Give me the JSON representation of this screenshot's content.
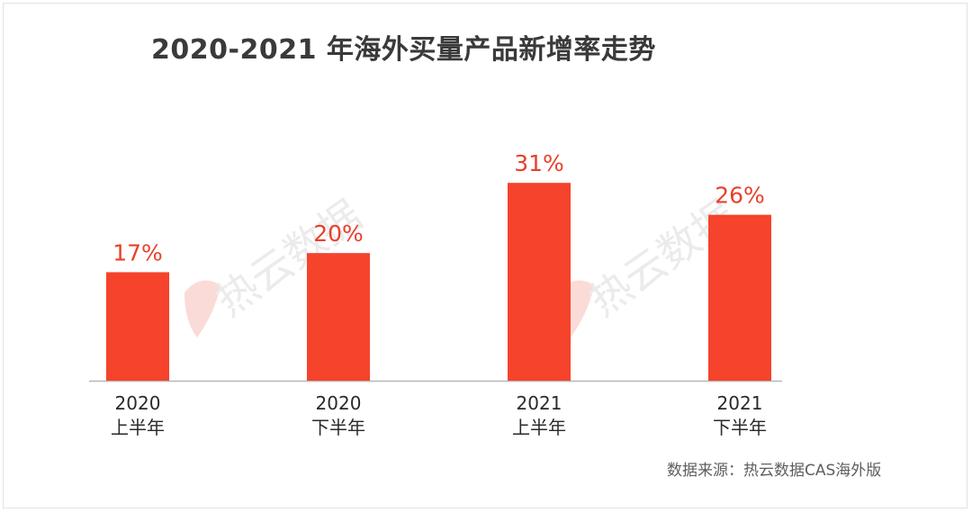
{
  "title": "2020-2021 年海外买量产品新增率走势",
  "source": "数据来源：热云数据CAS海外版",
  "watermark": "热云数据",
  "colors": {
    "bar": "#f5432c",
    "value_label": "#e8402b",
    "axis": "#b7b7b7",
    "tick_label": "#2a2a2a"
  },
  "chart_data": {
    "type": "bar",
    "categories": [
      {
        "line1": "2020",
        "line2": "上半年"
      },
      {
        "line1": "2020",
        "line2": "下半年"
      },
      {
        "line1": "2021",
        "line2": "上半年"
      },
      {
        "line1": "2021",
        "line2": "下半年"
      }
    ],
    "values": [
      17,
      20,
      31,
      26
    ],
    "value_labels": [
      "17%",
      "20%",
      "31%",
      "26%"
    ],
    "unit": "%",
    "ylim": [
      0,
      38.5
    ],
    "grid": false,
    "legend": "none"
  }
}
